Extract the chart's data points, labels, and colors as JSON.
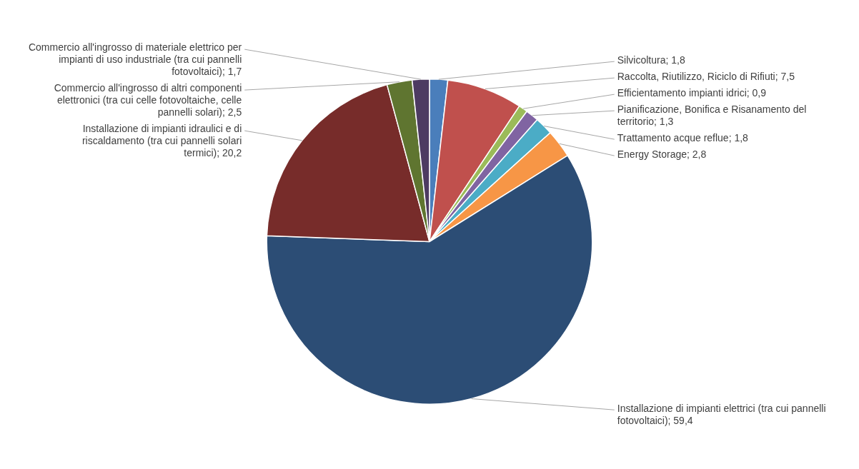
{
  "chart_data": {
    "type": "pie",
    "legend": false,
    "categories": [
      "Silvicoltura",
      "Raccolta, Riutilizzo, Riciclo di Rifiuti",
      "Efficientamento impianti idrici",
      "Pianificazione, Bonifica e Risanamento del territorio",
      "Trattamento acque reflue",
      "Energy Storage",
      "Installazione di impianti elettrici (tra cui pannelli fotovoltaici)",
      "Installazione di impianti idraulici e di riscaldamento (tra cui pannelli solari termici)",
      "Commercio all'ingrosso di altri componenti elettronici (tra cui celle fotovoltaiche, celle pannelli solari)",
      "Commercio all'ingrosso di materiale elettrico per impianti di uso industriale (tra cui pannelli fotovoltaici)"
    ],
    "values": [
      1.8,
      7.5,
      0.9,
      1.3,
      1.8,
      2.8,
      59.4,
      20.2,
      2.5,
      1.7
    ],
    "value_labels": [
      "1,8",
      "7,5",
      "0,9",
      "1,3",
      "1,8",
      "2,8",
      "59,4",
      "20,2",
      "2,5",
      "1,7"
    ],
    "colors": [
      "#4a7ebb",
      "#c0504d",
      "#9bbb59",
      "#8064a2",
      "#4bacc6",
      "#f79646",
      "#2c4d75",
      "#772c2a",
      "#5f7530",
      "#4d3b62"
    ]
  }
}
